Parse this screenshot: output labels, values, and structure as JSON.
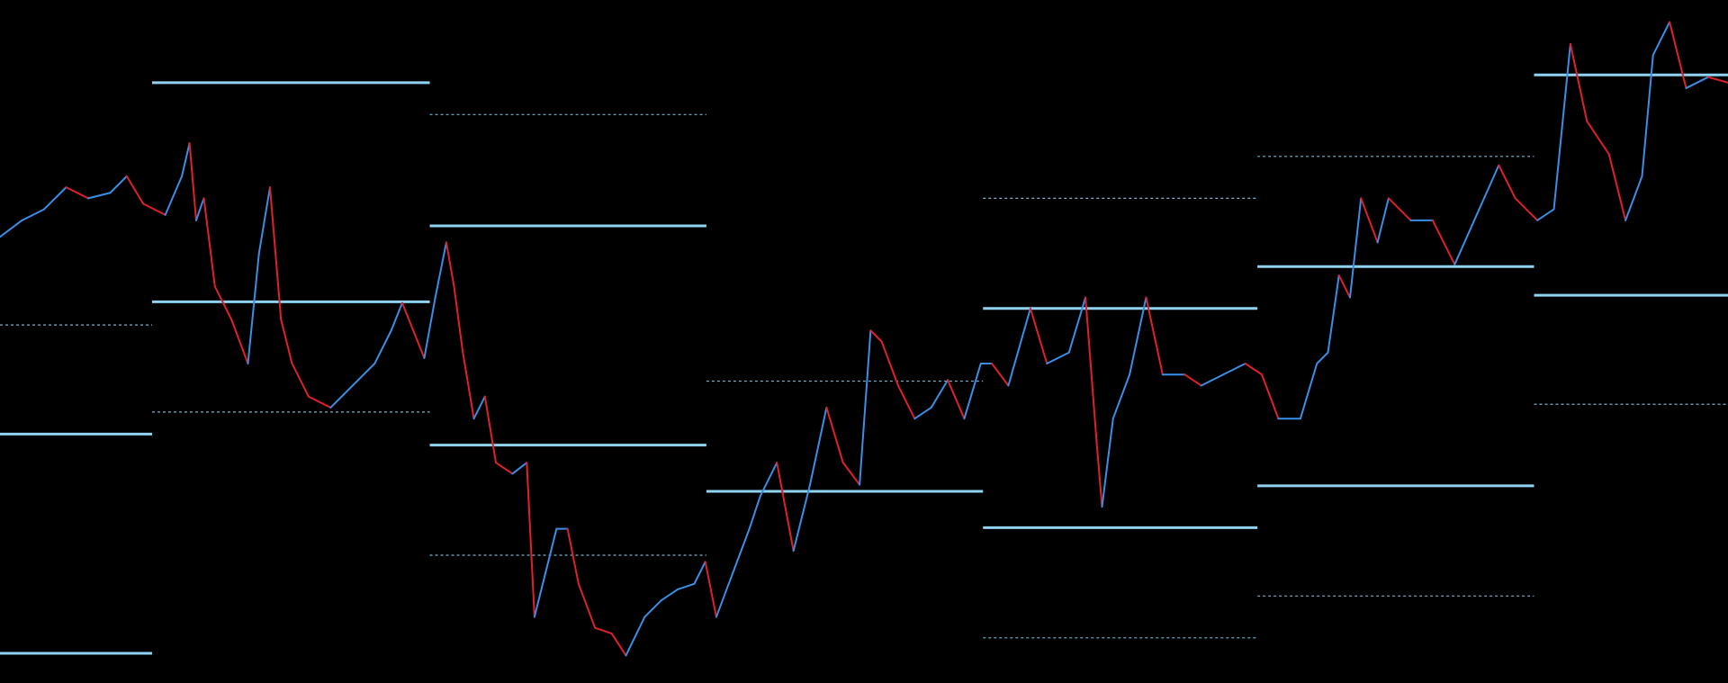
{
  "chart_data": {
    "type": "line",
    "xlim": [
      0,
      1568
    ],
    "ylim": [
      0,
      620
    ],
    "series": [
      {
        "up_color": "#3a8ee6",
        "down_color": "#e0202a",
        "x": [
          0,
          20,
          40,
          60,
          80,
          100,
          115,
          130,
          150,
          165,
          172,
          178,
          185,
          195,
          210,
          225,
          235,
          245,
          255,
          265,
          280,
          300,
          320,
          340,
          355,
          365,
          385,
          395,
          405,
          412,
          420,
          430,
          440,
          450,
          465,
          478,
          485,
          495,
          505,
          515,
          525,
          540,
          555,
          568,
          585,
          600,
          615,
          630,
          640,
          650,
          665,
          680,
          690,
          705,
          720,
          735,
          750,
          765,
          780,
          790,
          800,
          815,
          830,
          845,
          860,
          875,
          890,
          900,
          915,
          935,
          950,
          970,
          985,
          995,
          1000,
          1010,
          1025,
          1040,
          1055,
          1075,
          1090,
          1110,
          1130,
          1145,
          1160,
          1180,
          1195,
          1205,
          1215,
          1225,
          1235,
          1250,
          1260,
          1280,
          1300,
          1320,
          1340,
          1360,
          1375,
          1395,
          1410,
          1425,
          1440,
          1460,
          1475,
          1490,
          1500,
          1515,
          1530,
          1550,
          1568
        ],
        "values": [
          405,
          420,
          430,
          450,
          440,
          445,
          460,
          435,
          425,
          460,
          490,
          420,
          440,
          360,
          330,
          290,
          390,
          450,
          330,
          290,
          260,
          250,
          270,
          290,
          320,
          345,
          295,
          350,
          400,
          360,
          300,
          240,
          260,
          200,
          190,
          200,
          60,
          100,
          140,
          140,
          90,
          50,
          45,
          25,
          60,
          75,
          85,
          90,
          110,
          60,
          100,
          140,
          170,
          200,
          120,
          180,
          250,
          200,
          180,
          320,
          310,
          270,
          240,
          250,
          275,
          240,
          290,
          290,
          270,
          340,
          290,
          300,
          350,
          220,
          160,
          240,
          280,
          350,
          280,
          280,
          270,
          280,
          290,
          280,
          240,
          240,
          290,
          300,
          370,
          350,
          440,
          400,
          440,
          420,
          420,
          380,
          425,
          470,
          440,
          420,
          430,
          580,
          510,
          480,
          420,
          460,
          570,
          600,
          540,
          550,
          545
        ]
      }
    ],
    "level_color": "#8fd3f0",
    "levels": [
      {
        "x": [
          0,
          138
        ],
        "value": 226,
        "style": "solid"
      },
      {
        "x": [
          0,
          138
        ],
        "value": 325,
        "style": "dotted"
      },
      {
        "x": [
          0,
          138
        ],
        "value": 27,
        "style": "solid"
      },
      {
        "x": [
          138,
          390
        ],
        "value": 545,
        "style": "solid"
      },
      {
        "x": [
          138,
          390
        ],
        "value": 346,
        "style": "solid"
      },
      {
        "x": [
          138,
          390
        ],
        "value": 246,
        "style": "dotted"
      },
      {
        "x": [
          390,
          641
        ],
        "value": 516,
        "style": "dotted"
      },
      {
        "x": [
          390,
          641
        ],
        "value": 415,
        "style": "solid"
      },
      {
        "x": [
          390,
          641
        ],
        "value": 216,
        "style": "solid"
      },
      {
        "x": [
          390,
          641
        ],
        "value": 116,
        "style": "dotted"
      },
      {
        "x": [
          641,
          892
        ],
        "value": 274,
        "style": "dotted"
      },
      {
        "x": [
          641,
          892
        ],
        "value": 174,
        "style": "solid"
      },
      {
        "x": [
          892,
          1141
        ],
        "value": 440,
        "style": "dotted"
      },
      {
        "x": [
          892,
          1141
        ],
        "value": 340,
        "style": "solid"
      },
      {
        "x": [
          892,
          1141
        ],
        "value": 141,
        "style": "solid"
      },
      {
        "x": [
          892,
          1141
        ],
        "value": 41,
        "style": "dotted"
      },
      {
        "x": [
          1141,
          1392
        ],
        "value": 478,
        "style": "dotted"
      },
      {
        "x": [
          1141,
          1392
        ],
        "value": 378,
        "style": "solid"
      },
      {
        "x": [
          1141,
          1392
        ],
        "value": 179,
        "style": "solid"
      },
      {
        "x": [
          1141,
          1392
        ],
        "value": 79,
        "style": "dotted"
      },
      {
        "x": [
          1392,
          1568
        ],
        "value": 552,
        "style": "solid"
      },
      {
        "x": [
          1392,
          1568
        ],
        "value": 352,
        "style": "solid"
      },
      {
        "x": [
          1392,
          1568
        ],
        "value": 253,
        "style": "dotted"
      }
    ]
  }
}
